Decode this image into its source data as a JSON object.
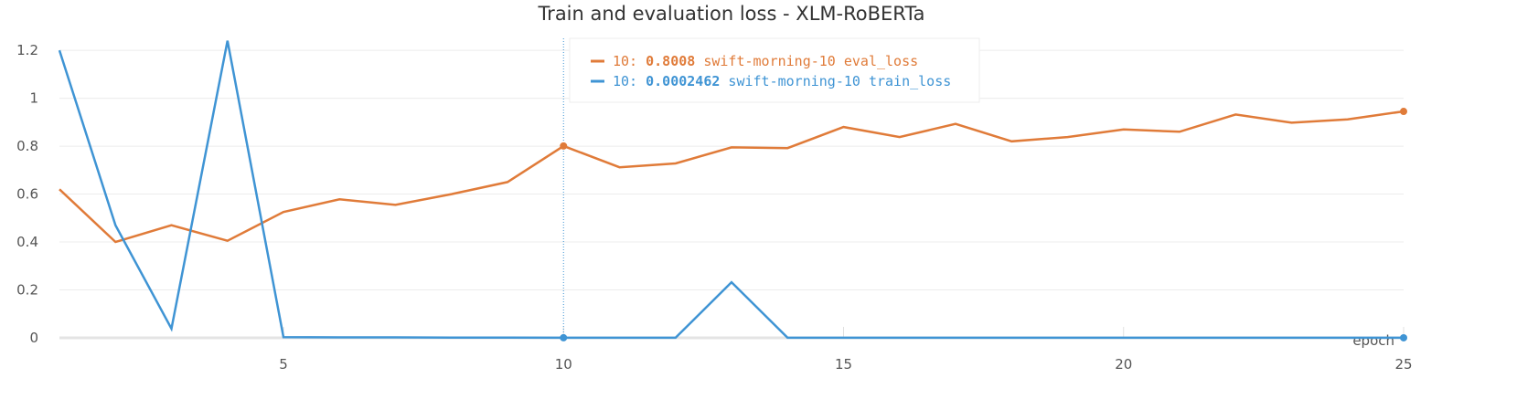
{
  "chart_data": {
    "type": "line",
    "title": "Train and evaluation loss - XLM-RoBERTa",
    "xlabel": "epoch",
    "ylabel": "",
    "xlim": [
      1,
      25
    ],
    "ylim": [
      0,
      1.25
    ],
    "xticks": [
      5,
      10,
      15,
      20,
      25
    ],
    "xtick_labels": [
      "5",
      "10",
      "15",
      "20",
      "25"
    ],
    "yticks": [
      0,
      0.2,
      0.4,
      0.6,
      0.8,
      1,
      1.2
    ],
    "ytick_labels": [
      "0",
      "0.2",
      "0.4",
      "0.6",
      "0.8",
      "1",
      "1.2"
    ],
    "grid": true,
    "hover_x": 10,
    "legend": {
      "placement": "top-center",
      "entries": [
        {
          "prefix": "10:",
          "value": "0.8008",
          "label": "swift-morning-10 eval_loss",
          "color": "#e07b39"
        },
        {
          "prefix": "10:",
          "value": "0.0002462",
          "label": "swift-morning-10 train_loss",
          "color": "#3f94d4"
        }
      ]
    },
    "series": [
      {
        "key": "eval_loss",
        "color": "#e07b39",
        "x": [
          1,
          2,
          3,
          4,
          5,
          6,
          7,
          8,
          9,
          10,
          11,
          12,
          13,
          14,
          15,
          16,
          17,
          18,
          19,
          20,
          21,
          22,
          23,
          24,
          25
        ],
        "y": [
          0.62,
          0.4,
          0.47,
          0.405,
          0.525,
          0.578,
          0.555,
          0.6,
          0.65,
          0.8008,
          0.712,
          0.728,
          0.795,
          0.792,
          0.88,
          0.838,
          0.893,
          0.82,
          0.838,
          0.87,
          0.86,
          0.932,
          0.898,
          0.912,
          0.945
        ]
      },
      {
        "key": "train_loss",
        "color": "#3f94d4",
        "x": [
          1,
          2,
          3,
          4,
          5,
          6,
          7,
          8,
          9,
          10,
          11,
          12,
          13,
          14,
          15,
          16,
          17,
          18,
          19,
          20,
          21,
          22,
          23,
          24,
          25
        ],
        "y": [
          1.2,
          0.47,
          0.038,
          1.24,
          0.003,
          0.002,
          0.002,
          0.001,
          0.001,
          0.0002462,
          0.0002,
          0.0002,
          0.232,
          0.0002,
          0.0002,
          0.0002,
          0.0002,
          0.0002,
          0.0002,
          0.0002,
          0.0002,
          0.0002,
          0.0002,
          0.0002,
          0.0002
        ]
      }
    ]
  }
}
